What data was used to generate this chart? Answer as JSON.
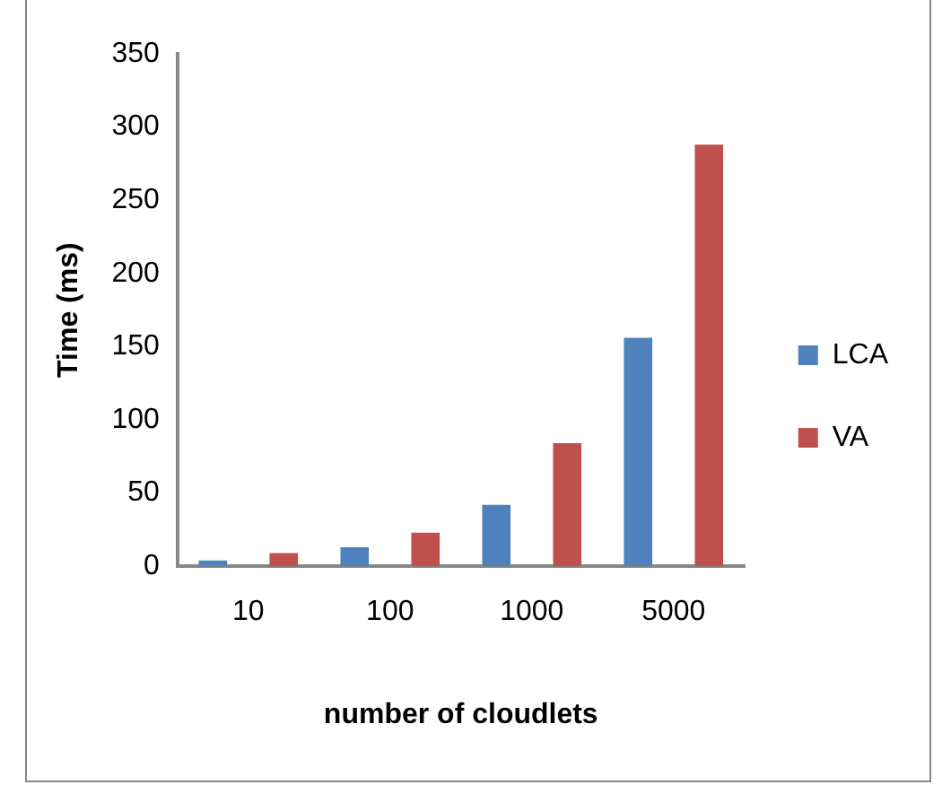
{
  "chart_data": {
    "type": "bar",
    "xlabel": "number of cloudlets",
    "ylabel": "Time (ms)",
    "categories": [
      "10",
      "100",
      "1000",
      "5000"
    ],
    "series": [
      {
        "name": "LCA",
        "color": "#4f81bd",
        "values": [
          4,
          13,
          42,
          156
        ]
      },
      {
        "name": "VA",
        "color": "#c0504d",
        "values": [
          9,
          23,
          84,
          288
        ]
      }
    ],
    "ylim": [
      0,
      350
    ],
    "yticks": [
      0,
      50,
      100,
      150,
      200,
      250,
      300,
      350
    ],
    "grid": false,
    "legend": "right"
  }
}
